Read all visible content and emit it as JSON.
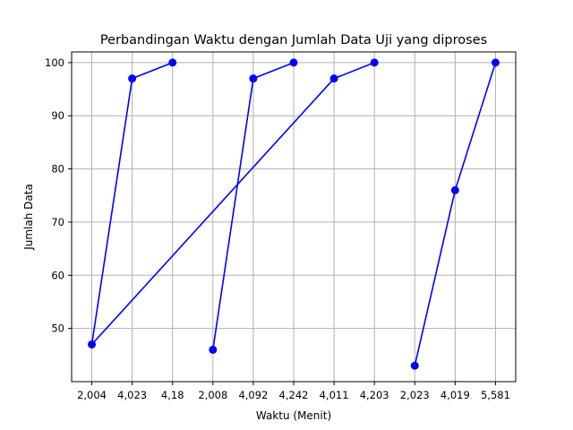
{
  "chart_data": {
    "type": "line",
    "title": "Perbandingan Waktu dengan Jumlah Data Uji yang diproses",
    "xlabel": "Waktu (Menit)",
    "ylabel": "Jumlah Data",
    "categories": [
      "2,004",
      "4,023",
      "4,18",
      "2,008",
      "4,092",
      "4,242",
      "4,011",
      "4,203",
      "2,023",
      "4,019",
      "5,581"
    ],
    "series": [
      {
        "values": [
          47,
          97,
          100,
          46,
          97,
          100,
          97,
          100,
          43,
          76,
          100
        ],
        "point_order": [
          0,
          1,
          2,
          0,
          6,
          7
        ],
        "segments": [
          [
            0,
            1,
            2
          ],
          [
            0,
            6,
            7
          ],
          [
            3,
            4,
            5
          ],
          [
            8,
            9,
            10
          ]
        ],
        "color": "#0000ff",
        "marker": "circle"
      }
    ],
    "ylim": [
      40,
      102
    ],
    "yticks": [
      50,
      60,
      70,
      80,
      90,
      100
    ],
    "grid": true,
    "legend": "none"
  }
}
